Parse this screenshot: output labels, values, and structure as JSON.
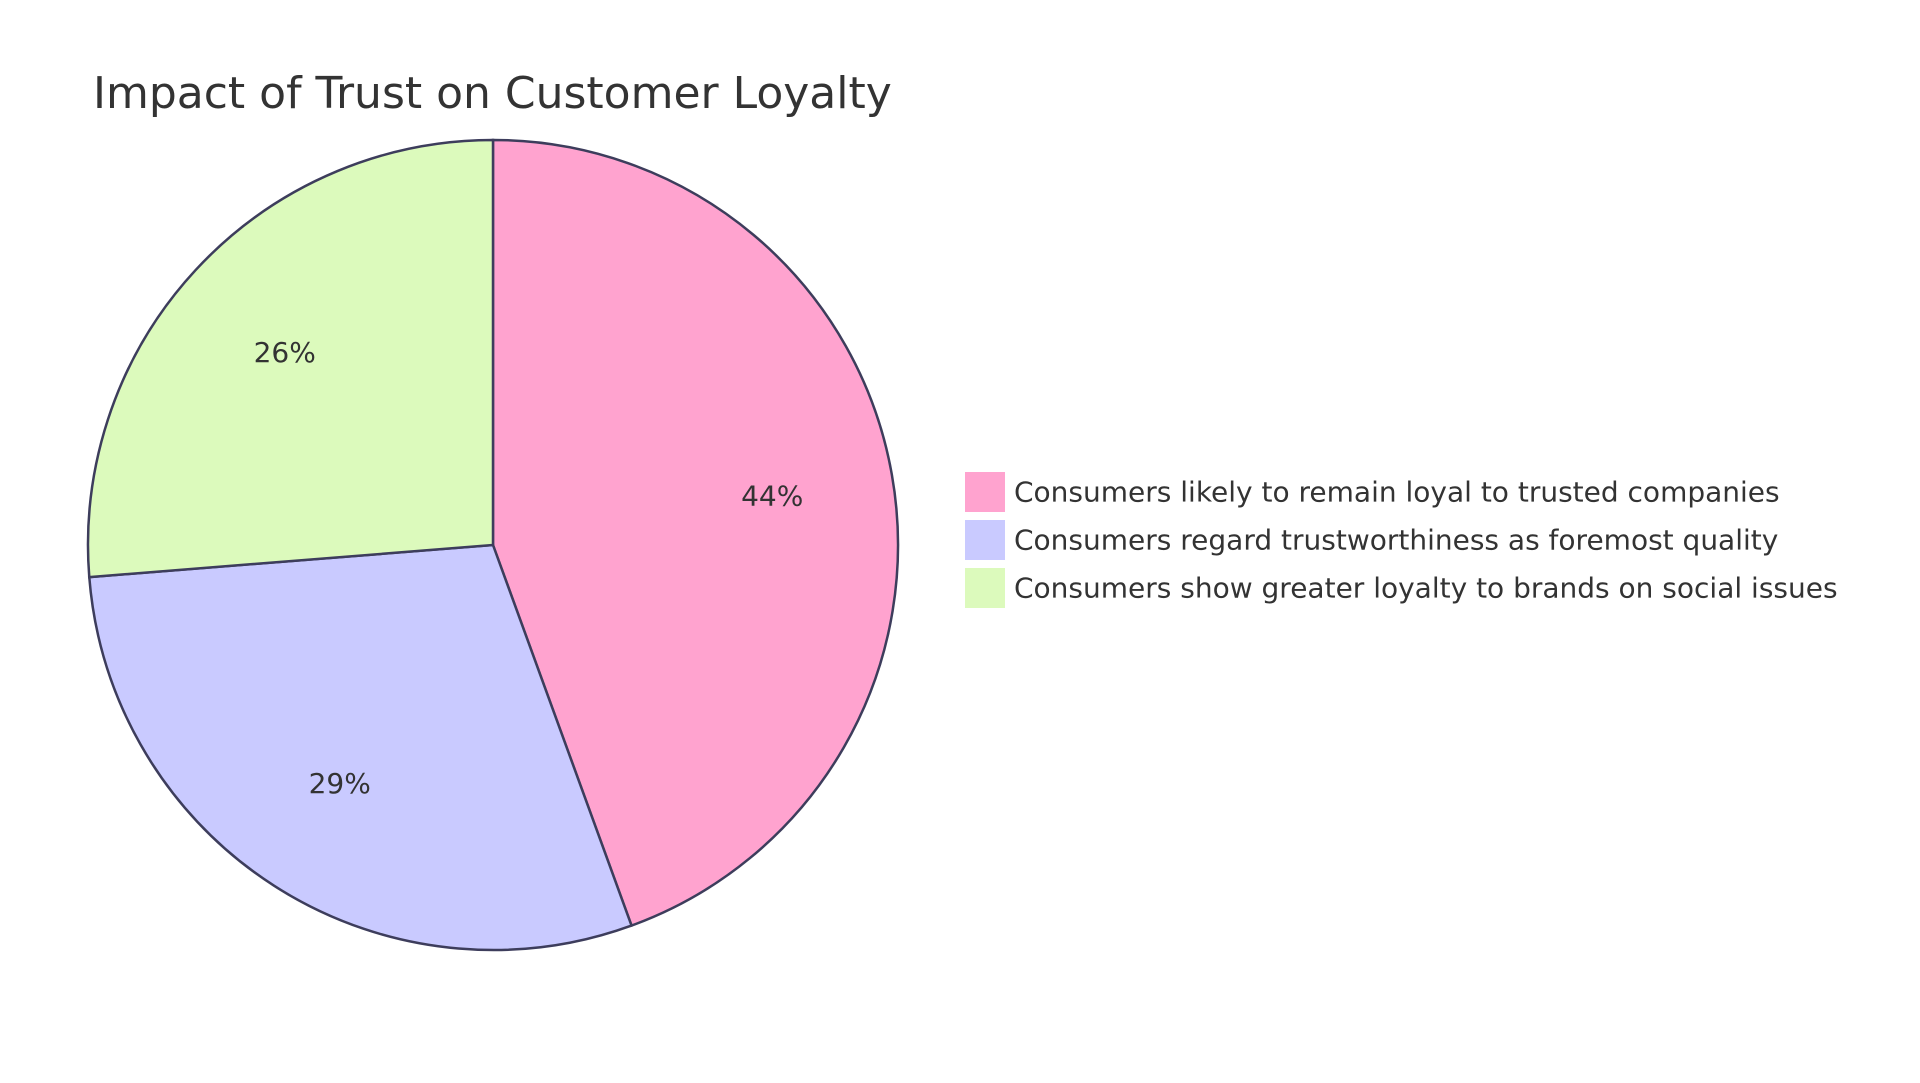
{
  "chart_data": {
    "type": "pie",
    "title": "Impact of Trust on Customer Loyalty",
    "slices": [
      {
        "label": "Consumers likely to remain loyal to trusted companies",
        "value": 44,
        "display": "44%",
        "color": "#FFA3CF"
      },
      {
        "label": "Consumers regard trustworthiness as foremost quality",
        "value": 29,
        "display": "29%",
        "color": "#C9CAFF"
      },
      {
        "label": "Consumers show greater loyalty to brands on social issues",
        "value": 26,
        "display": "26%",
        "color": "#DCFABC"
      }
    ],
    "legend_position": "right",
    "stroke_color": "#3D3D5C"
  }
}
